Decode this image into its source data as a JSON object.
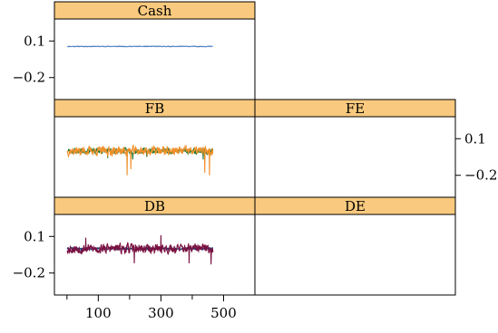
{
  "chart_data": {
    "type": "line",
    "layout": "lattice-2x3",
    "x_axis": {
      "ticks": [
        100,
        300,
        500
      ],
      "range": [
        -40,
        600
      ]
    },
    "y_axis": {
      "ticks": [
        0.1,
        -0.2
      ],
      "tick_labels": [
        "0.1",
        "−0.2"
      ],
      "range": [
        -0.38,
        0.28
      ]
    },
    "panels": [
      {
        "name": "Cash",
        "color": "#4a7fc0",
        "x_start": 1,
        "x_end": 466,
        "baseline": 0.055,
        "amplitude": 0.004,
        "spikes": [],
        "seed": 11
      },
      {
        "name": "FB",
        "color": "#1e7a35",
        "x_start": 1,
        "x_end": 466,
        "baseline": 0.0,
        "amplitude": 0.035,
        "spikes": [
          [
            130,
            -0.06
          ],
          [
            210,
            -0.07
          ],
          [
            255,
            -0.05
          ],
          [
            435,
            -0.07
          ]
        ],
        "seed": 23
      },
      {
        "name": "FE",
        "color": "#f0902a",
        "x_start": 1,
        "x_end": 466,
        "baseline": 0.0,
        "amplitude": 0.055,
        "spikes": [
          [
            192,
            -0.2
          ],
          [
            204,
            -0.15
          ],
          [
            440,
            -0.18
          ],
          [
            455,
            -0.2
          ]
        ],
        "seed": 37
      },
      {
        "name": "DB",
        "color": "#1f3f7a",
        "x_start": 1,
        "x_end": 466,
        "baseline": 0.0,
        "amplitude": 0.012,
        "spikes": [
          [
            45,
            -0.03
          ],
          [
            200,
            -0.025
          ]
        ],
        "seed": 41
      },
      {
        "name": "DE",
        "color": "#7a1140",
        "x_start": 1,
        "x_end": 466,
        "baseline": 0.0,
        "amplitude": 0.06,
        "spikes": [
          [
            60,
            0.09
          ],
          [
            215,
            -0.12
          ],
          [
            300,
            0.11
          ],
          [
            390,
            -0.12
          ],
          [
            460,
            -0.13
          ]
        ],
        "seed": 53
      }
    ],
    "strip_color": "#f8c97e",
    "grid": false
  }
}
